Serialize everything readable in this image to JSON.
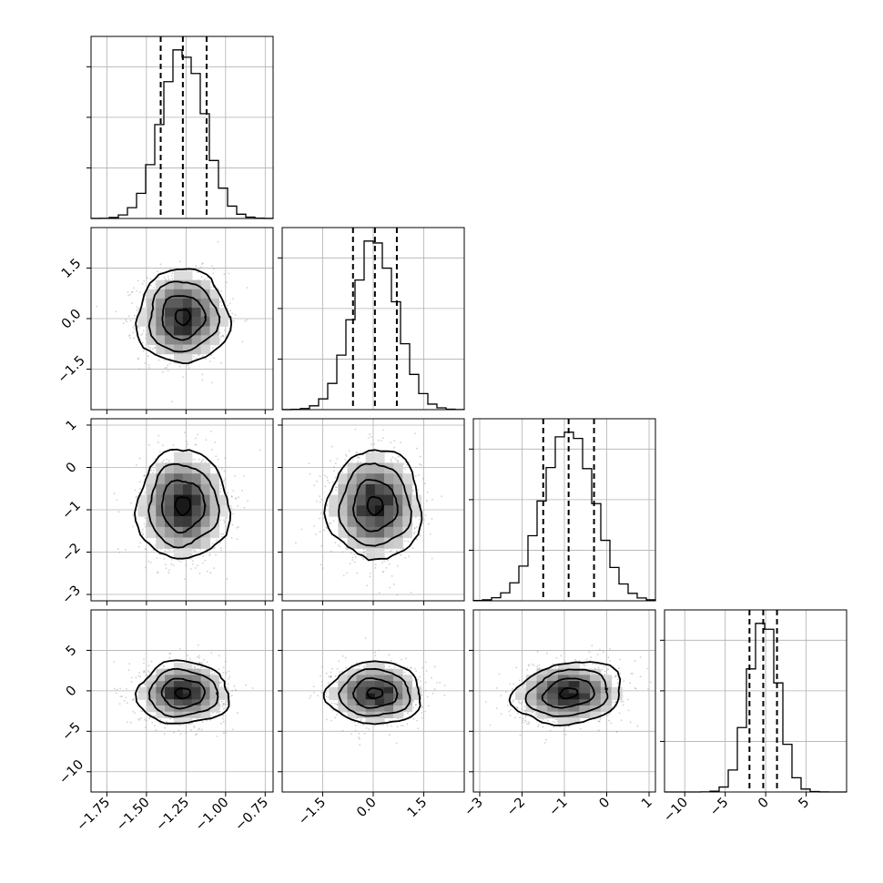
{
  "chart_data": {
    "type": "corner",
    "parameters": [
      {
        "index": 0,
        "range": [
          -1.85,
          -0.7
        ],
        "median": -1.27,
        "q16": -1.41,
        "q84": -1.12,
        "sd": 0.135,
        "ticks": [
          -1.75,
          -1.5,
          -1.25,
          -1.0,
          -0.75
        ],
        "tick_labels": [
          "−1.75",
          "−1.50",
          "−1.25",
          "−1.00",
          "−0.75"
        ]
      },
      {
        "index": 1,
        "range": [
          -2.7,
          2.7
        ],
        "median": 0.05,
        "q16": -0.6,
        "q84": 0.7,
        "sd": 0.65,
        "ticks": [
          -1.5,
          0.0,
          1.5
        ],
        "tick_labels": [
          "−1.5",
          "0.0",
          "1.5"
        ]
      },
      {
        "index": 2,
        "range": [
          -3.15,
          1.15
        ],
        "median": -0.9,
        "q16": -1.5,
        "q84": -0.3,
        "sd": 0.6,
        "ticks": [
          -3,
          -2,
          -1,
          0,
          1
        ],
        "tick_labels": [
          "−3",
          "−2",
          "−1",
          "0",
          "1"
        ]
      },
      {
        "index": 3,
        "range": [
          -12.5,
          10.0
        ],
        "median": -0.3,
        "q16": -2.0,
        "q84": 1.4,
        "sd": 1.8,
        "ticks": [
          -10,
          -5,
          0,
          5
        ],
        "tick_labels": [
          "−10",
          "−5",
          "0",
          "5"
        ]
      }
    ],
    "diagonal_histograms": [
      {
        "parameter": 0,
        "type": "histogram",
        "bins": 20
      },
      {
        "parameter": 1,
        "type": "histogram",
        "bins": 20
      },
      {
        "parameter": 2,
        "type": "histogram",
        "bins": 20
      },
      {
        "parameter": 3,
        "type": "histogram",
        "bins": 20
      }
    ],
    "off_diagonal": [
      {
        "x": 0,
        "y": 1,
        "correlation": 0.0
      },
      {
        "x": 0,
        "y": 2,
        "correlation": 0.0
      },
      {
        "x": 1,
        "y": 2,
        "correlation": 0.0
      },
      {
        "x": 0,
        "y": 3,
        "correlation": 0.0
      },
      {
        "x": 1,
        "y": 3,
        "correlation": 0.0
      },
      {
        "x": 2,
        "y": 3,
        "correlation": 0.2
      }
    ],
    "grid": true,
    "colors": {
      "contour": "#000000",
      "points": "#9a9a9a",
      "grid": "#b0b0b0"
    }
  }
}
